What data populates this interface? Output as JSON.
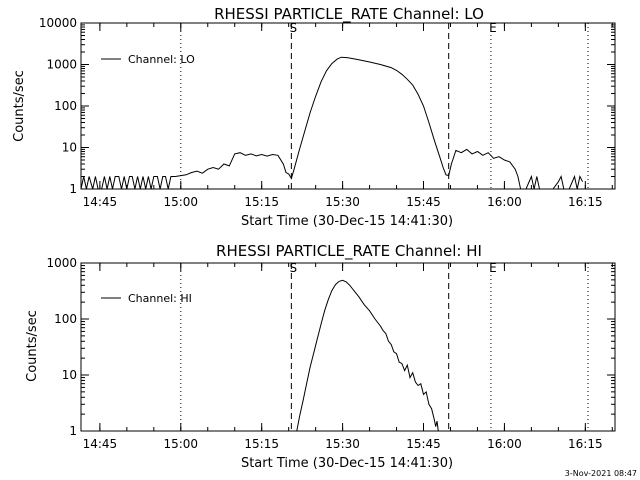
{
  "footer_timestamp": "3-Nov-2021 08:47",
  "chart_data": [
    {
      "type": "line",
      "title": "RHESSI PARTICLE_RATE Channel: LO",
      "xlabel": "Start Time (30-Dec-15 14:41:30)",
      "ylabel": "Counts/sec",
      "y_scale": "log",
      "ylim": [
        1,
        10000
      ],
      "xlim": [
        "14:41:30",
        "16:20:30"
      ],
      "x_ticks": [
        "14:45",
        "15:00",
        "15:15",
        "15:30",
        "15:45",
        "16:00",
        "16:15"
      ],
      "y_ticks": [
        "1",
        "10",
        "100",
        "1000",
        "10000"
      ],
      "grid": false,
      "legend_position": "top-left",
      "markers": [
        {
          "label": "",
          "time": "15:00",
          "style": "dotted"
        },
        {
          "label": "S",
          "time": "15:20:30",
          "style": "dashed"
        },
        {
          "label": "",
          "time": "15:49:40",
          "style": "dashed"
        },
        {
          "label": "E",
          "time": "15:57:30",
          "style": "dotted"
        },
        {
          "label": "",
          "time": "16:15:30",
          "style": "dotted"
        }
      ],
      "series": [
        {
          "name": "Channel: LO",
          "color": "#000000",
          "points": [
            [
              "14:41:30",
              1
            ],
            [
              "14:42:00",
              2
            ],
            [
              "14:42:30",
              1
            ],
            [
              "14:43:00",
              2
            ],
            [
              "14:43:40",
              1
            ],
            [
              "14:44:10",
              2
            ],
            [
              "14:44:40",
              1
            ],
            [
              "14:45:20",
              1
            ],
            [
              "14:45:50",
              2
            ],
            [
              "14:46:20",
              1
            ],
            [
              "14:46:50",
              2
            ],
            [
              "14:47:20",
              1
            ],
            [
              "14:47:50",
              2
            ],
            [
              "14:48:30",
              2
            ],
            [
              "14:49:00",
              1
            ],
            [
              "14:49:30",
              2
            ],
            [
              "14:50:00",
              1
            ],
            [
              "14:50:30",
              2
            ],
            [
              "14:51:00",
              2
            ],
            [
              "14:51:30",
              1
            ],
            [
              "14:52:00",
              2
            ],
            [
              "14:52:30",
              1
            ],
            [
              "14:53:00",
              2
            ],
            [
              "14:53:30",
              1
            ],
            [
              "14:54:00",
              2
            ],
            [
              "14:54:30",
              1
            ],
            [
              "14:55:00",
              2
            ],
            [
              "14:55:40",
              2
            ],
            [
              "14:56:10",
              1
            ],
            [
              "14:56:40",
              2
            ],
            [
              "14:57:10",
              2
            ],
            [
              "14:57:40",
              1
            ],
            [
              "14:58:10",
              2
            ],
            [
              "14:59:00",
              2
            ],
            [
              "15:00:00",
              2.1
            ],
            [
              "15:01:00",
              2.2
            ],
            [
              "15:02:00",
              2.5
            ],
            [
              "15:03:00",
              2.7
            ],
            [
              "15:04:00",
              2.4
            ],
            [
              "15:05:00",
              3
            ],
            [
              "15:06:00",
              3.3
            ],
            [
              "15:07:00",
              3
            ],
            [
              "15:08:00",
              4
            ],
            [
              "15:09:00",
              3.6
            ],
            [
              "15:10:00",
              7
            ],
            [
              "15:11:00",
              7.5
            ],
            [
              "15:12:00",
              6.5
            ],
            [
              "15:13:00",
              7
            ],
            [
              "15:14:00",
              6.3
            ],
            [
              "15:15:00",
              6.8
            ],
            [
              "15:16:00",
              6.2
            ],
            [
              "15:17:00",
              6.8
            ],
            [
              "15:18:00",
              6.5
            ],
            [
              "15:19:00",
              4
            ],
            [
              "15:19:30",
              2.5
            ],
            [
              "15:20:00",
              2.3
            ],
            [
              "15:20:30",
              1.8
            ],
            [
              "15:21:00",
              3
            ],
            [
              "15:22:00",
              9
            ],
            [
              "15:23:00",
              25
            ],
            [
              "15:24:00",
              70
            ],
            [
              "15:25:00",
              170
            ],
            [
              "15:26:00",
              380
            ],
            [
              "15:27:00",
              700
            ],
            [
              "15:28:00",
              1050
            ],
            [
              "15:29:00",
              1350
            ],
            [
              "15:29:45",
              1500
            ],
            [
              "15:31:00",
              1450
            ],
            [
              "15:33:00",
              1300
            ],
            [
              "15:35:00",
              1150
            ],
            [
              "15:37:00",
              1000
            ],
            [
              "15:39:00",
              840
            ],
            [
              "15:40:00",
              720
            ],
            [
              "15:41:00",
              580
            ],
            [
              "15:42:00",
              440
            ],
            [
              "15:43:00",
              320
            ],
            [
              "15:44:00",
              190
            ],
            [
              "15:45:00",
              100
            ],
            [
              "15:46:00",
              40
            ],
            [
              "15:47:00",
              15
            ],
            [
              "15:48:00",
              6
            ],
            [
              "15:48:40",
              3.2
            ],
            [
              "15:49:10",
              2.2
            ],
            [
              "15:49:40",
              2.1
            ],
            [
              "15:50:10",
              4
            ],
            [
              "15:51:00",
              8.5
            ],
            [
              "15:52:00",
              7.5
            ],
            [
              "15:53:00",
              9
            ],
            [
              "15:54:00",
              7
            ],
            [
              "15:55:00",
              8
            ],
            [
              "15:56:00",
              6.5
            ],
            [
              "15:57:00",
              7.5
            ],
            [
              "15:58:00",
              5.5
            ],
            [
              "15:59:00",
              6
            ],
            [
              "16:00:00",
              5
            ],
            [
              "16:01:00",
              4.5
            ],
            [
              "16:02:00",
              3
            ],
            [
              "16:02:30",
              2
            ],
            [
              "16:03:00",
              1
            ],
            [
              "16:04:00",
              1
            ],
            [
              "16:05:00",
              2
            ],
            [
              "16:05:30",
              1
            ],
            [
              "16:06:00",
              2
            ],
            [
              "16:06:30",
              1
            ],
            [
              "16:07:00",
              1
            ],
            [
              "16:09:00",
              1
            ],
            [
              "16:10:00",
              1.5
            ],
            [
              "16:10:30",
              2
            ],
            [
              "16:11:00",
              1
            ],
            [
              "16:12:00",
              1
            ],
            [
              "16:13:00",
              2
            ],
            [
              "16:13:30",
              1
            ],
            [
              "16:14:00",
              2
            ],
            [
              "16:14:30",
              1.5
            ]
          ]
        }
      ]
    },
    {
      "type": "line",
      "title": "RHESSI PARTICLE_RATE Channel: HI",
      "xlabel": "Start Time (30-Dec-15 14:41:30)",
      "ylabel": "Counts/sec",
      "y_scale": "log",
      "ylim": [
        1,
        1000
      ],
      "xlim": [
        "14:41:30",
        "16:20:30"
      ],
      "x_ticks": [
        "14:45",
        "15:00",
        "15:15",
        "15:30",
        "15:45",
        "16:00",
        "16:15"
      ],
      "y_ticks": [
        "1",
        "10",
        "100",
        "1000"
      ],
      "grid": false,
      "legend_position": "top-left",
      "markers": [
        {
          "label": "",
          "time": "15:00",
          "style": "dotted"
        },
        {
          "label": "S",
          "time": "15:20:30",
          "style": "dashed"
        },
        {
          "label": "",
          "time": "15:49:40",
          "style": "dashed"
        },
        {
          "label": "E",
          "time": "15:57:30",
          "style": "dotted"
        },
        {
          "label": "",
          "time": "16:15:30",
          "style": "dotted"
        }
      ],
      "series": [
        {
          "name": "Channel: HI",
          "color": "#000000",
          "points": [
            [
              "15:21:30",
              1
            ],
            [
              "15:22:00",
              1.8
            ],
            [
              "15:22:40",
              3.5
            ],
            [
              "15:23:20",
              7
            ],
            [
              "15:24:00",
              14
            ],
            [
              "15:24:40",
              25
            ],
            [
              "15:25:20",
              45
            ],
            [
              "15:26:00",
              80
            ],
            [
              "15:26:40",
              140
            ],
            [
              "15:27:20",
              220
            ],
            [
              "15:28:00",
              320
            ],
            [
              "15:28:40",
              410
            ],
            [
              "15:29:20",
              470
            ],
            [
              "15:30:00",
              490
            ],
            [
              "15:30:40",
              460
            ],
            [
              "15:31:20",
              400
            ],
            [
              "15:32:00",
              330
            ],
            [
              "15:33:00",
              250
            ],
            [
              "15:34:00",
              180
            ],
            [
              "15:35:00",
              140
            ],
            [
              "15:36:00",
              100
            ],
            [
              "15:37:00",
              75
            ],
            [
              "15:37:30",
              62
            ],
            [
              "15:38:00",
              55
            ],
            [
              "15:38:30",
              40
            ],
            [
              "15:39:00",
              35
            ],
            [
              "15:39:30",
              26
            ],
            [
              "15:40:00",
              24
            ],
            [
              "15:40:30",
              17
            ],
            [
              "15:41:00",
              16
            ],
            [
              "15:41:30",
              12
            ],
            [
              "15:42:00",
              15
            ],
            [
              "15:42:30",
              9
            ],
            [
              "15:43:00",
              11
            ],
            [
              "15:43:30",
              7.5
            ],
            [
              "15:44:00",
              6.5
            ],
            [
              "15:44:30",
              7
            ],
            [
              "15:45:00",
              4.5
            ],
            [
              "15:45:30",
              5
            ],
            [
              "15:46:00",
              3
            ],
            [
              "15:46:30",
              2.5
            ],
            [
              "15:47:00",
              1.6
            ],
            [
              "15:47:15",
              1.2
            ],
            [
              "15:47:30",
              1.5
            ],
            [
              "15:47:45",
              1
            ]
          ]
        }
      ]
    }
  ]
}
